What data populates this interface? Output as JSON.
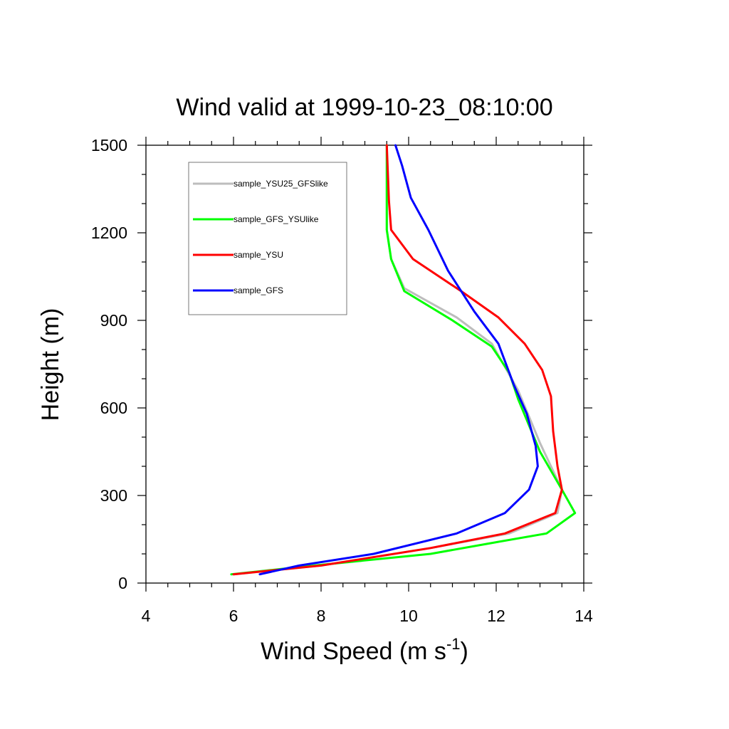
{
  "chart_data": {
    "type": "line",
    "title": "Wind valid at 1999-10-23_08:10:00",
    "xlabel": "Wind Speed (m s",
    "xlabel_sup": "-1",
    "xlabel_close": ")",
    "ylabel": "Height (m)",
    "xlim": [
      4,
      14
    ],
    "ylim": [
      0,
      1500
    ],
    "xticks": [
      "4",
      "6",
      "8",
      "10",
      "12",
      "14"
    ],
    "yticks": [
      "0",
      "300",
      "600",
      "900",
      "1200",
      "1500"
    ],
    "grid": false,
    "legend_position": "top-left",
    "series": [
      {
        "name": "sample_YSU25_GFSlike",
        "color": "#bdbdbd",
        "points": [
          [
            6.0,
            30
          ],
          [
            8.0,
            60
          ],
          [
            10.5,
            120
          ],
          [
            12.3,
            170
          ],
          [
            13.4,
            240
          ],
          [
            13.5,
            320
          ],
          [
            13.0,
            480
          ],
          [
            12.5,
            660
          ],
          [
            11.9,
            820
          ],
          [
            11.1,
            910
          ],
          [
            9.9,
            1010
          ],
          [
            9.6,
            1110
          ],
          [
            9.5,
            1210
          ],
          [
            9.5,
            1500
          ]
        ]
      },
      {
        "name": "sample_GFS_YSUlike",
        "color": "#00ff00",
        "points": [
          [
            5.95,
            30
          ],
          [
            7.5,
            55
          ],
          [
            9.5,
            85
          ],
          [
            10.5,
            100
          ],
          [
            12.0,
            140
          ],
          [
            13.15,
            170
          ],
          [
            13.8,
            240
          ],
          [
            13.5,
            320
          ],
          [
            13.0,
            450
          ],
          [
            12.5,
            630
          ],
          [
            12.3,
            720
          ],
          [
            11.9,
            810
          ],
          [
            11.0,
            900
          ],
          [
            9.9,
            1000
          ],
          [
            9.6,
            1110
          ],
          [
            9.5,
            1210
          ],
          [
            9.5,
            1500
          ]
        ]
      },
      {
        "name": "sample_YSU",
        "color": "#ff0000",
        "points": [
          [
            6.0,
            30
          ],
          [
            8.0,
            60
          ],
          [
            10.5,
            120
          ],
          [
            12.2,
            170
          ],
          [
            13.35,
            240
          ],
          [
            13.5,
            320
          ],
          [
            13.4,
            400
          ],
          [
            13.3,
            520
          ],
          [
            13.25,
            640
          ],
          [
            13.05,
            730
          ],
          [
            12.65,
            820
          ],
          [
            12.05,
            910
          ],
          [
            11.2,
            1000
          ],
          [
            10.1,
            1110
          ],
          [
            9.6,
            1210
          ],
          [
            9.55,
            1310
          ],
          [
            9.5,
            1500
          ]
        ]
      },
      {
        "name": "sample_GFS",
        "color": "#0000ff",
        "points": [
          [
            6.6,
            30
          ],
          [
            7.5,
            60
          ],
          [
            9.2,
            100
          ],
          [
            11.1,
            170
          ],
          [
            12.2,
            240
          ],
          [
            12.75,
            320
          ],
          [
            12.95,
            400
          ],
          [
            12.9,
            470
          ],
          [
            12.7,
            580
          ],
          [
            12.4,
            680
          ],
          [
            12.05,
            820
          ],
          [
            11.5,
            930
          ],
          [
            10.9,
            1070
          ],
          [
            10.45,
            1210
          ],
          [
            10.05,
            1320
          ],
          [
            9.85,
            1430
          ],
          [
            9.7,
            1500
          ]
        ]
      }
    ]
  }
}
